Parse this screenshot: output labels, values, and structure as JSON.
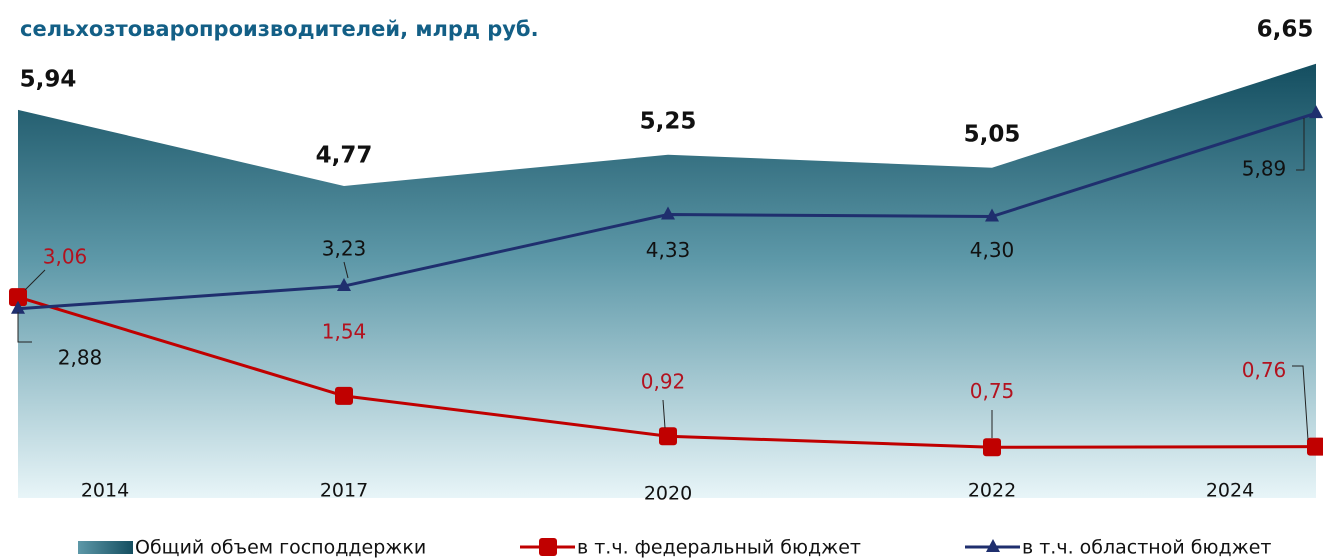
{
  "chart_data": {
    "type": "area-line",
    "title": "сельхозтоваропроизводителей, млрд руб.",
    "categories": [
      "2014",
      "2017",
      "2020",
      "2022",
      "2024"
    ],
    "series": [
      {
        "name": "Общий объем господдержки",
        "color": "#1a5466",
        "kind": "area",
        "values": [
          5.94,
          4.77,
          5.25,
          5.05,
          6.65
        ],
        "value_labels": [
          "5,94",
          "4,77",
          "5,25",
          "5,05",
          "6,65"
        ]
      },
      {
        "name": "в т.ч. федеральный бюджет",
        "color": "#c00000",
        "kind": "line",
        "marker": "square",
        "values": [
          3.06,
          1.54,
          0.92,
          0.75,
          0.76
        ],
        "value_labels": [
          "3,06",
          "1,54",
          "0,92",
          "0,75",
          "0,76"
        ]
      },
      {
        "name": "в т.ч. областной бюджет",
        "color": "#1f2f6e",
        "kind": "line",
        "marker": "triangle",
        "values": [
          2.88,
          3.23,
          4.33,
          4.3,
          5.89
        ],
        "value_labels": [
          "2,88",
          "3,23",
          "4,33",
          "4,30",
          "5,89"
        ]
      }
    ]
  }
}
